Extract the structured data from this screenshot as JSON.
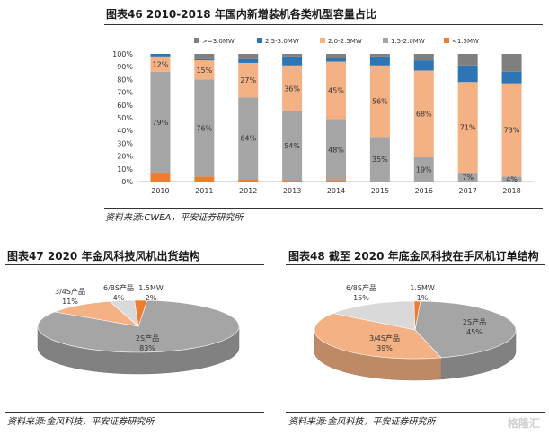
{
  "chart_data": [
    {
      "type": "bar",
      "stacked": true,
      "percent": true,
      "title": "图表46    2010-2018 年国内新增装机各类机型容量占比",
      "categories": [
        "2010",
        "2011",
        "2012",
        "2013",
        "2014",
        "2015",
        "2016",
        "2017",
        "2018"
      ],
      "series": [
        {
          "name": "<1.5MW",
          "color": "#ED7D31",
          "values": [
            7,
            4,
            2,
            1,
            1,
            0,
            0,
            0,
            0
          ],
          "labels": [
            "",
            "",
            "",
            "",
            "",
            "",
            "",
            "",
            ""
          ]
        },
        {
          "name": "1.5-2.0MW",
          "color": "#A5A5A5",
          "values": [
            79,
            76,
            64,
            54,
            48,
            35,
            19,
            7,
            4
          ],
          "labels": [
            "79%",
            "76%",
            "64%",
            "54%",
            "48%",
            "35%",
            "19%",
            "7%",
            "4%"
          ]
        },
        {
          "name": "2.0-2.5MW",
          "color": "#F4B183",
          "values": [
            12,
            15,
            27,
            36,
            45,
            56,
            68,
            71,
            73
          ],
          "labels": [
            "12%",
            "15%",
            "27%",
            "36%",
            "45%",
            "56%",
            "68%",
            "71%",
            "73%"
          ]
        },
        {
          "name": "2.5-3.0MW",
          "color": "#2E75B6",
          "values": [
            2,
            1,
            3,
            7,
            3,
            7,
            8,
            13,
            9
          ],
          "labels": [
            "",
            "",
            "",
            "",
            "",
            "",
            "",
            "",
            ""
          ]
        },
        {
          "name": ">=3.0MW",
          "color": "#7F7F7F",
          "values": [
            0,
            4,
            4,
            2,
            3,
            2,
            5,
            9,
            14
          ],
          "labels": [
            "",
            "",
            "",
            "",
            "",
            "",
            "",
            "",
            ""
          ]
        }
      ],
      "ylim": [
        0,
        100
      ],
      "yticks": [
        "0%",
        "10%",
        "20%",
        "30%",
        "40%",
        "50%",
        "60%",
        "70%",
        "80%",
        "90%",
        "100%"
      ],
      "legend_position": "top",
      "source": "资料来源:CWEA，平安证券研究所"
    },
    {
      "type": "pie",
      "title": "图表47    2020 年金风科技风机出货结构",
      "slices": [
        {
          "name": "2S产品",
          "value": 83,
          "label": "83%",
          "color": "#A5A5A5"
        },
        {
          "name": "3/4S产品",
          "value": 11,
          "label": "11%",
          "color": "#F4B183"
        },
        {
          "name": "6/8S产品",
          "value": 4,
          "label": "4%",
          "color": "#D9D9D9"
        },
        {
          "name": "1.5MW",
          "value": 2,
          "label": "2%",
          "color": "#ED7D31"
        }
      ],
      "source": "资料来源:金风科技，平安证券研究所"
    },
    {
      "type": "pie",
      "title": "图表48    截至 2020 年底金风科技在手风机订单结构",
      "slices": [
        {
          "name": "2S产品",
          "value": 45,
          "label": "45%",
          "color": "#A5A5A5"
        },
        {
          "name": "3/4S产品",
          "value": 39,
          "label": "39%",
          "color": "#F4B183"
        },
        {
          "name": "6/8S产品",
          "value": 15,
          "label": "15%",
          "color": "#D9D9D9"
        },
        {
          "name": "1.5MW",
          "value": 1,
          "label": "1%",
          "color": "#ED7D31"
        }
      ],
      "source": "资料来源:金风科技，平安证券研究所"
    }
  ],
  "watermark": "格隆汇"
}
